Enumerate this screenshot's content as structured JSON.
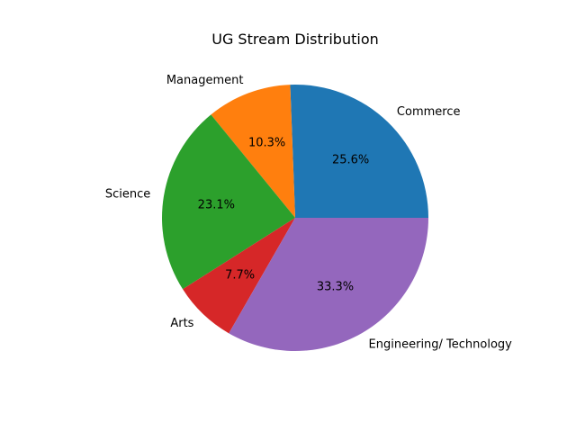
{
  "chart_data": {
    "type": "pie",
    "title": "UG Stream Distribution",
    "categories": [
      "Commerce",
      "Management",
      "Science",
      "Arts",
      "Engineering/ Technology"
    ],
    "values": [
      25.6,
      10.3,
      23.1,
      7.7,
      33.3
    ],
    "percent_labels": [
      "25.6%",
      "10.3%",
      "23.1%",
      "7.7%",
      "33.3%"
    ],
    "colors": [
      "#1f77b4",
      "#ff7f0e",
      "#2ca02c",
      "#d62728",
      "#9467bd"
    ],
    "start_angle_deg": 0,
    "direction": "counterclockwise",
    "legend": "none"
  }
}
